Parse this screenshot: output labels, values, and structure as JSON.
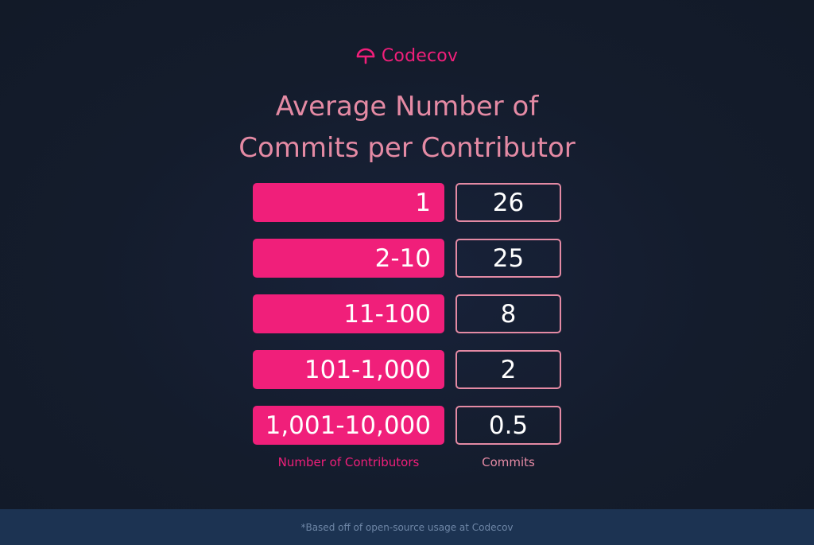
{
  "brand": {
    "name": "Codecov",
    "logo_icon": "codecov-umbrella-icon",
    "color": "#f01f7a"
  },
  "colors": {
    "background": "#141d2c",
    "bar": "#f01f7a",
    "value_border": "#e48aa4",
    "title": "#e48aa4",
    "footer": "#1c3352"
  },
  "chart_data": {
    "type": "table",
    "title_lines": [
      "Average Number of",
      "Commits per Contributor"
    ],
    "xlabel": "Number of Contributors",
    "ylabel": "Commits",
    "categories": [
      "1",
      "2-10",
      "11-100",
      "101-1,000",
      "1,001-10,000"
    ],
    "values": [
      "26",
      "25",
      "8",
      "2",
      "0.5"
    ]
  },
  "footnote": "*Based off of open-source usage at Codecov"
}
